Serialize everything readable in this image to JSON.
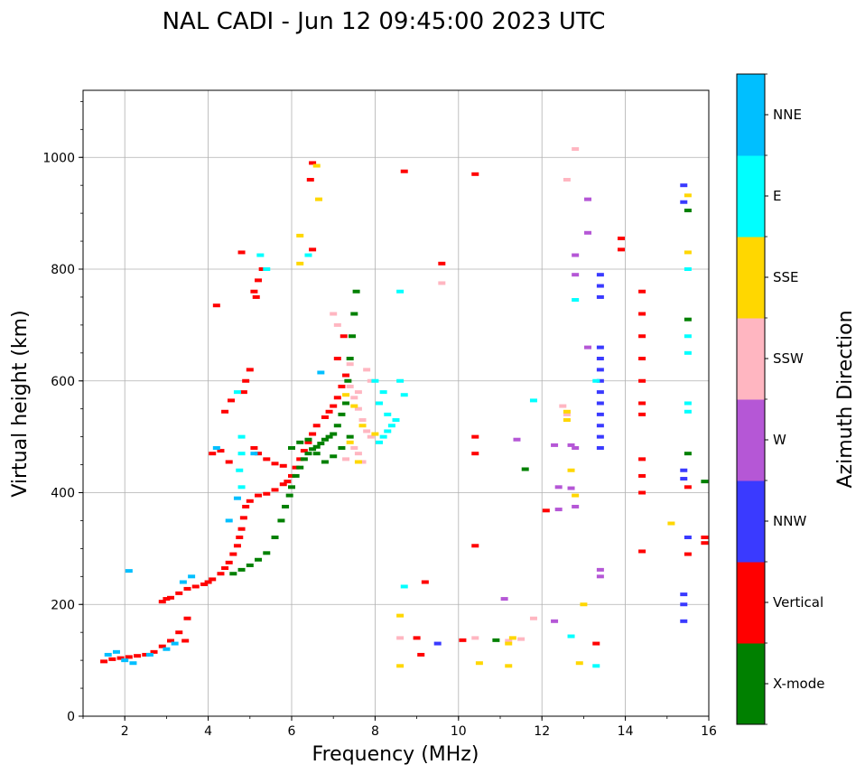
{
  "chart_data": {
    "type": "scatter",
    "title": "NAL CADI - Jun 12 09:45:00 2023 UTC",
    "xlabel": "Frequency (MHz)",
    "ylabel": "Virtual height (km)",
    "xlim": [
      1,
      16
    ],
    "ylim": [
      0,
      1120
    ],
    "xticks": [
      2,
      4,
      6,
      8,
      10,
      12,
      14,
      16
    ],
    "yticks": [
      0,
      200,
      400,
      600,
      800,
      1000
    ],
    "grid": true,
    "colorbar": {
      "label": "Azimuth Direction",
      "categories": [
        {
          "name": "X-mode",
          "color": "#008000"
        },
        {
          "name": "Vertical",
          "color": "#ff0000"
        },
        {
          "name": "NNW",
          "color": "#3a3aff"
        },
        {
          "name": "W",
          "color": "#b557d6"
        },
        {
          "name": "SSW",
          "color": "#ffb6c1"
        },
        {
          "name": "SSE",
          "color": "#ffd700"
        },
        {
          "name": "E",
          "color": "#00ffff"
        },
        {
          "name": "NNE",
          "color": "#00bfff"
        }
      ]
    },
    "series": [
      {
        "name": "Vertical",
        "points": [
          [
            1.5,
            98
          ],
          [
            1.7,
            102
          ],
          [
            1.9,
            104
          ],
          [
            2.1,
            106
          ],
          [
            2.3,
            108
          ],
          [
            2.5,
            110
          ],
          [
            2.7,
            115
          ],
          [
            2.9,
            125
          ],
          [
            3.1,
            135
          ],
          [
            3.3,
            150
          ],
          [
            3.45,
            135
          ],
          [
            3.5,
            175
          ],
          [
            2.9,
            205
          ],
          [
            3.0,
            210
          ],
          [
            3.1,
            212
          ],
          [
            3.3,
            220
          ],
          [
            3.5,
            228
          ],
          [
            3.7,
            232
          ],
          [
            3.9,
            236
          ],
          [
            4.0,
            240
          ],
          [
            4.1,
            245
          ],
          [
            4.3,
            255
          ],
          [
            4.4,
            265
          ],
          [
            4.5,
            275
          ],
          [
            4.6,
            290
          ],
          [
            4.7,
            305
          ],
          [
            4.75,
            320
          ],
          [
            4.8,
            335
          ],
          [
            4.85,
            355
          ],
          [
            4.9,
            375
          ],
          [
            5.0,
            385
          ],
          [
            5.2,
            395
          ],
          [
            5.4,
            398
          ],
          [
            5.6,
            405
          ],
          [
            5.8,
            415
          ],
          [
            5.9,
            420
          ],
          [
            6.0,
            430
          ],
          [
            6.1,
            445
          ],
          [
            6.2,
            460
          ],
          [
            6.3,
            475
          ],
          [
            6.4,
            490
          ],
          [
            6.5,
            505
          ],
          [
            6.6,
            520
          ],
          [
            6.8,
            535
          ],
          [
            6.9,
            545
          ],
          [
            7.0,
            555
          ],
          [
            7.1,
            570
          ],
          [
            7.2,
            590
          ],
          [
            7.3,
            610
          ],
          [
            5.1,
            480
          ],
          [
            5.2,
            470
          ],
          [
            5.4,
            460
          ],
          [
            5.6,
            452
          ],
          [
            5.8,
            448
          ],
          [
            4.1,
            470
          ],
          [
            4.3,
            475
          ],
          [
            4.5,
            455
          ],
          [
            4.9,
            600
          ],
          [
            5.0,
            620
          ],
          [
            4.85,
            580
          ],
          [
            4.4,
            545
          ],
          [
            4.55,
            565
          ],
          [
            5.1,
            760
          ],
          [
            5.2,
            780
          ],
          [
            5.3,
            800
          ],
          [
            5.15,
            750
          ],
          [
            4.8,
            830
          ],
          [
            4.2,
            735
          ],
          [
            6.5,
            990
          ],
          [
            6.45,
            960
          ],
          [
            6.5,
            835
          ],
          [
            7.25,
            680
          ],
          [
            7.1,
            640
          ],
          [
            9.2,
            240
          ],
          [
            9.0,
            140
          ],
          [
            9.1,
            110
          ],
          [
            10.4,
            470
          ],
          [
            10.4,
            500
          ],
          [
            10.4,
            305
          ],
          [
            10.4,
            970
          ],
          [
            9.6,
            810
          ],
          [
            8.7,
            975
          ],
          [
            14.4,
            760
          ],
          [
            14.4,
            720
          ],
          [
            14.4,
            680
          ],
          [
            14.4,
            640
          ],
          [
            14.4,
            600
          ],
          [
            14.4,
            560
          ],
          [
            14.4,
            540
          ],
          [
            14.4,
            460
          ],
          [
            14.4,
            430
          ],
          [
            14.4,
            400
          ],
          [
            14.4,
            295
          ],
          [
            13.9,
            855
          ],
          [
            13.9,
            835
          ],
          [
            15.9,
            320
          ],
          [
            15.9,
            310
          ],
          [
            15.5,
            410
          ],
          [
            15.5,
            290
          ],
          [
            12.1,
            368
          ],
          [
            13.3,
            130
          ],
          [
            10.1,
            136
          ]
        ]
      },
      {
        "name": "X-mode",
        "points": [
          [
            4.6,
            255
          ],
          [
            4.8,
            262
          ],
          [
            5.0,
            270
          ],
          [
            5.2,
            280
          ],
          [
            5.4,
            292
          ],
          [
            5.6,
            320
          ],
          [
            5.75,
            350
          ],
          [
            5.85,
            375
          ],
          [
            5.95,
            395
          ],
          [
            6.0,
            410
          ],
          [
            6.1,
            430
          ],
          [
            6.2,
            445
          ],
          [
            6.3,
            460
          ],
          [
            6.4,
            470
          ],
          [
            6.5,
            478
          ],
          [
            6.6,
            482
          ],
          [
            6.7,
            488
          ],
          [
            6.8,
            495
          ],
          [
            6.9,
            500
          ],
          [
            7.0,
            505
          ],
          [
            7.1,
            520
          ],
          [
            7.2,
            540
          ],
          [
            7.3,
            560
          ],
          [
            7.35,
            600
          ],
          [
            7.4,
            640
          ],
          [
            7.45,
            680
          ],
          [
            7.5,
            720
          ],
          [
            7.55,
            760
          ],
          [
            6.0,
            480
          ],
          [
            6.2,
            490
          ],
          [
            6.4,
            495
          ],
          [
            6.6,
            470
          ],
          [
            6.8,
            455
          ],
          [
            7.0,
            465
          ],
          [
            7.2,
            480
          ],
          [
            7.4,
            500
          ],
          [
            15.5,
            905
          ],
          [
            15.5,
            710
          ],
          [
            15.5,
            470
          ],
          [
            15.9,
            420
          ],
          [
            11.6,
            442
          ],
          [
            10.9,
            136
          ]
        ]
      },
      {
        "name": "NNW",
        "points": [
          [
            13.4,
            790
          ],
          [
            13.4,
            770
          ],
          [
            13.4,
            750
          ],
          [
            13.4,
            660
          ],
          [
            13.4,
            640
          ],
          [
            13.4,
            620
          ],
          [
            13.4,
            600
          ],
          [
            13.4,
            580
          ],
          [
            13.4,
            560
          ],
          [
            13.4,
            540
          ],
          [
            13.4,
            520
          ],
          [
            13.4,
            500
          ],
          [
            13.4,
            480
          ],
          [
            15.4,
            950
          ],
          [
            15.4,
            920
          ],
          [
            15.4,
            440
          ],
          [
            15.4,
            425
          ],
          [
            15.5,
            320
          ],
          [
            15.4,
            218
          ],
          [
            15.4,
            200
          ],
          [
            15.4,
            170
          ],
          [
            9.5,
            130
          ]
        ]
      },
      {
        "name": "W",
        "points": [
          [
            13.1,
            925
          ],
          [
            13.1,
            865
          ],
          [
            12.8,
            825
          ],
          [
            12.8,
            790
          ],
          [
            12.7,
            485
          ],
          [
            12.8,
            480
          ],
          [
            12.7,
            408
          ],
          [
            12.8,
            375
          ],
          [
            13.4,
            262
          ],
          [
            13.4,
            250
          ],
          [
            12.3,
            485
          ],
          [
            12.4,
            410
          ],
          [
            12.4,
            370
          ],
          [
            12.3,
            170
          ],
          [
            11.1,
            210
          ],
          [
            11.4,
            495
          ],
          [
            13.1,
            660
          ]
        ]
      },
      {
        "name": "SSW",
        "points": [
          [
            7.4,
            590
          ],
          [
            7.5,
            570
          ],
          [
            7.6,
            550
          ],
          [
            7.7,
            530
          ],
          [
            7.8,
            510
          ],
          [
            7.9,
            500
          ],
          [
            7.5,
            480
          ],
          [
            7.6,
            470
          ],
          [
            7.3,
            460
          ],
          [
            7.7,
            455
          ],
          [
            7.4,
            630
          ],
          [
            7.0,
            720
          ],
          [
            7.1,
            700
          ],
          [
            7.8,
            620
          ],
          [
            7.9,
            600
          ],
          [
            7.6,
            580
          ],
          [
            8.1,
            560
          ],
          [
            12.8,
            1015
          ],
          [
            12.6,
            960
          ],
          [
            9.6,
            775
          ],
          [
            10.4,
            140
          ],
          [
            11.2,
            135
          ],
          [
            11.5,
            138
          ],
          [
            11.8,
            175
          ],
          [
            12.5,
            555
          ],
          [
            12.6,
            540
          ],
          [
            8.6,
            140
          ]
        ]
      },
      {
        "name": "SSE",
        "points": [
          [
            6.6,
            985
          ],
          [
            6.65,
            925
          ],
          [
            6.2,
            860
          ],
          [
            6.2,
            810
          ],
          [
            7.3,
            575
          ],
          [
            7.5,
            555
          ],
          [
            7.7,
            520
          ],
          [
            8.0,
            505
          ],
          [
            7.4,
            490
          ],
          [
            7.6,
            455
          ],
          [
            12.6,
            545
          ],
          [
            12.6,
            530
          ],
          [
            12.7,
            440
          ],
          [
            12.8,
            395
          ],
          [
            15.5,
            932
          ],
          [
            15.5,
            830
          ],
          [
            15.1,
            345
          ],
          [
            13.0,
            200
          ],
          [
            12.9,
            95
          ],
          [
            8.6,
            180
          ],
          [
            8.6,
            90
          ],
          [
            11.3,
            140
          ],
          [
            11.2,
            130
          ],
          [
            11.2,
            90
          ],
          [
            10.5,
            95
          ]
        ]
      },
      {
        "name": "E",
        "points": [
          [
            4.8,
            500
          ],
          [
            4.8,
            470
          ],
          [
            4.75,
            440
          ],
          [
            4.8,
            410
          ],
          [
            4.7,
            580
          ],
          [
            5.25,
            825
          ],
          [
            5.4,
            800
          ],
          [
            6.4,
            825
          ],
          [
            8.1,
            490
          ],
          [
            8.2,
            500
          ],
          [
            8.3,
            510
          ],
          [
            8.4,
            520
          ],
          [
            8.5,
            530
          ],
          [
            8.3,
            540
          ],
          [
            8.1,
            560
          ],
          [
            8.2,
            580
          ],
          [
            8.0,
            600
          ],
          [
            8.6,
            760
          ],
          [
            8.6,
            600
          ],
          [
            8.7,
            575
          ],
          [
            12.8,
            745
          ],
          [
            13.3,
            600
          ],
          [
            15.5,
            800
          ],
          [
            15.5,
            680
          ],
          [
            15.5,
            650
          ],
          [
            15.5,
            560
          ],
          [
            15.5,
            545
          ],
          [
            8.7,
            232
          ],
          [
            12.7,
            143
          ],
          [
            13.3,
            90
          ],
          [
            11.8,
            565
          ]
        ]
      },
      {
        "name": "NNE",
        "points": [
          [
            1.6,
            110
          ],
          [
            1.8,
            115
          ],
          [
            2.0,
            100
          ],
          [
            2.2,
            95
          ],
          [
            2.6,
            110
          ],
          [
            3.0,
            120
          ],
          [
            3.2,
            130
          ],
          [
            3.4,
            240
          ],
          [
            3.6,
            250
          ],
          [
            4.5,
            350
          ],
          [
            4.7,
            390
          ],
          [
            5.1,
            470
          ],
          [
            6.7,
            615
          ],
          [
            2.1,
            260
          ],
          [
            4.2,
            480
          ]
        ]
      }
    ]
  }
}
